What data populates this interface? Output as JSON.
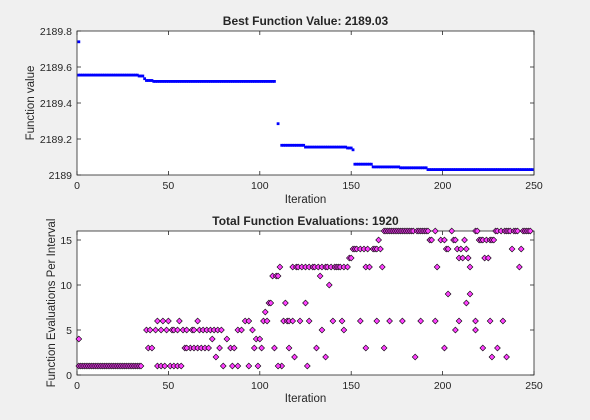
{
  "figure": {
    "background": "#f0f0f0"
  },
  "chart_data": [
    {
      "type": "scatter",
      "title": "Best Function Value: 2189.03",
      "xlabel": "Iteration",
      "ylabel": "Function value",
      "xlim": [
        0,
        250
      ],
      "ylim": [
        2189,
        2189.8
      ],
      "xticks": [
        "0",
        "50",
        "100",
        "150",
        "200",
        "250"
      ],
      "yticks": [
        "2189",
        "2189.2",
        "2189.4",
        "2189.6",
        "2189.8"
      ],
      "grid": false,
      "marker_color": "#0000ff",
      "segments": [
        {
          "x_start": 1,
          "x_end": 1,
          "y": 2189.74
        },
        {
          "x_start": 1,
          "x_end": 33,
          "y": 2189.555
        },
        {
          "x_start": 34,
          "x_end": 36,
          "y": 2189.55
        },
        {
          "x_start": 37,
          "x_end": 37,
          "y": 2189.535
        },
        {
          "x_start": 38,
          "x_end": 41,
          "y": 2189.525
        },
        {
          "x_start": 42,
          "x_end": 108,
          "y": 2189.52
        },
        {
          "x_start": 110,
          "x_end": 110,
          "y": 2189.285
        },
        {
          "x_start": 112,
          "x_end": 124,
          "y": 2189.165
        },
        {
          "x_start": 125,
          "x_end": 147,
          "y": 2189.155
        },
        {
          "x_start": 148,
          "x_end": 150,
          "y": 2189.15
        },
        {
          "x_start": 151,
          "x_end": 151,
          "y": 2189.14
        },
        {
          "x_start": 152,
          "x_end": 161,
          "y": 2189.06
        },
        {
          "x_start": 162,
          "x_end": 176,
          "y": 2189.045
        },
        {
          "x_start": 177,
          "x_end": 191,
          "y": 2189.04
        },
        {
          "x_start": 192,
          "x_end": 249,
          "y": 2189.03
        }
      ]
    },
    {
      "type": "scatter",
      "title": "Total Function Evaluations: 1920",
      "xlabel": "Iteration",
      "ylabel": "Function Evaluations Per Interval",
      "xlim": [
        0,
        250
      ],
      "ylim": [
        0,
        16
      ],
      "xticks": [
        "0",
        "50",
        "100",
        "150",
        "200",
        "250"
      ],
      "yticks": [
        "0",
        "5",
        "10",
        "15"
      ],
      "grid": false,
      "marker": "diamond",
      "marker_fill": "#ff40ff",
      "marker_edge": "#000000",
      "points": [
        [
          1,
          4
        ],
        [
          1,
          1
        ],
        [
          2,
          1
        ],
        [
          3,
          1
        ],
        [
          4,
          1
        ],
        [
          5,
          1
        ],
        [
          6,
          1
        ],
        [
          7,
          1
        ],
        [
          8,
          1
        ],
        [
          9,
          1
        ],
        [
          10,
          1
        ],
        [
          11,
          1
        ],
        [
          12,
          1
        ],
        [
          13,
          1
        ],
        [
          14,
          1
        ],
        [
          15,
          1
        ],
        [
          16,
          1
        ],
        [
          17,
          1
        ],
        [
          18,
          1
        ],
        [
          19,
          1
        ],
        [
          20,
          1
        ],
        [
          21,
          1
        ],
        [
          22,
          1
        ],
        [
          23,
          1
        ],
        [
          24,
          1
        ],
        [
          25,
          1
        ],
        [
          26,
          1
        ],
        [
          27,
          1
        ],
        [
          28,
          1
        ],
        [
          29,
          1
        ],
        [
          30,
          1
        ],
        [
          31,
          1
        ],
        [
          32,
          1
        ],
        [
          33,
          1
        ],
        [
          34,
          1
        ],
        [
          35,
          1
        ],
        [
          38,
          5
        ],
        [
          40,
          5
        ],
        [
          39,
          3
        ],
        [
          41,
          3
        ],
        [
          43,
          5
        ],
        [
          44,
          6
        ],
        [
          46,
          5
        ],
        [
          47,
          6
        ],
        [
          49,
          5
        ],
        [
          50,
          6
        ],
        [
          52,
          5
        ],
        [
          53,
          5
        ],
        [
          55,
          5
        ],
        [
          56,
          6
        ],
        [
          58,
          5
        ],
        [
          59,
          3
        ],
        [
          60,
          5
        ],
        [
          62,
          3
        ],
        [
          63,
          5
        ],
        [
          64,
          5
        ],
        [
          66,
          6
        ],
        [
          67,
          5
        ],
        [
          69,
          5
        ],
        [
          71,
          5
        ],
        [
          73,
          5
        ],
        [
          75,
          5
        ],
        [
          77,
          5
        ],
        [
          79,
          5
        ],
        [
          82,
          4
        ],
        [
          84,
          3
        ],
        [
          86,
          3
        ],
        [
          88,
          5
        ],
        [
          90,
          5
        ],
        [
          92,
          6
        ],
        [
          94,
          6
        ],
        [
          96,
          5
        ],
        [
          98,
          4
        ],
        [
          100,
          4
        ],
        [
          101,
          3
        ],
        [
          102,
          6
        ],
        [
          103,
          7
        ],
        [
          104,
          6
        ],
        [
          44,
          1
        ],
        [
          46,
          1
        ],
        [
          48,
          1
        ],
        [
          51,
          1
        ],
        [
          53,
          1
        ],
        [
          55,
          1
        ],
        [
          57,
          1
        ],
        [
          60,
          3
        ],
        [
          64,
          3
        ],
        [
          66,
          3
        ],
        [
          68,
          3
        ],
        [
          70,
          3
        ],
        [
          72,
          3
        ],
        [
          74,
          4
        ],
        [
          76,
          2
        ],
        [
          78,
          3
        ],
        [
          80,
          1
        ],
        [
          85,
          1
        ],
        [
          88,
          1
        ],
        [
          94,
          1
        ],
        [
          97,
          3
        ],
        [
          99,
          1
        ],
        [
          108,
          3
        ],
        [
          112,
          1
        ],
        [
          116,
          3
        ],
        [
          119,
          2
        ],
        [
          126,
          1
        ],
        [
          131,
          3
        ],
        [
          136,
          2
        ],
        [
          146,
          5
        ],
        [
          158,
          3
        ],
        [
          168,
          3
        ],
        [
          185,
          2
        ],
        [
          201,
          3
        ],
        [
          207,
          5
        ],
        [
          218,
          5
        ],
        [
          222,
          3
        ],
        [
          227,
          2
        ],
        [
          230,
          3
        ],
        [
          235,
          2
        ],
        [
          105,
          8
        ],
        [
          106,
          8
        ],
        [
          107,
          11
        ],
        [
          109,
          11
        ],
        [
          110,
          11
        ],
        [
          111,
          12
        ],
        [
          113,
          6
        ],
        [
          114,
          8
        ],
        [
          115,
          6
        ],
        [
          118,
          12
        ],
        [
          120,
          12
        ],
        [
          121,
          12
        ],
        [
          123,
          12
        ],
        [
          125,
          12
        ],
        [
          127,
          12
        ],
        [
          129,
          12
        ],
        [
          130,
          12
        ],
        [
          132,
          12
        ],
        [
          133,
          11
        ],
        [
          134,
          12
        ],
        [
          136,
          12
        ],
        [
          137,
          12
        ],
        [
          139,
          12
        ],
        [
          141,
          12
        ],
        [
          142,
          12
        ],
        [
          143,
          12
        ],
        [
          144,
          12
        ],
        [
          146,
          12
        ],
        [
          148,
          12
        ],
        [
          149,
          13
        ],
        [
          150,
          13
        ],
        [
          151,
          14
        ],
        [
          152,
          14
        ],
        [
          153,
          14
        ],
        [
          155,
          14
        ],
        [
          157,
          14
        ],
        [
          158,
          12
        ],
        [
          159,
          14
        ],
        [
          160,
          12
        ],
        [
          162,
          14
        ],
        [
          163,
          14
        ],
        [
          164,
          14
        ],
        [
          165,
          15
        ],
        [
          166,
          14
        ],
        [
          167,
          12
        ],
        [
          168,
          16
        ],
        [
          169,
          16
        ],
        [
          170,
          16
        ],
        [
          171,
          16
        ],
        [
          172,
          16
        ],
        [
          173,
          16
        ],
        [
          174,
          16
        ],
        [
          175,
          16
        ],
        [
          176,
          16
        ],
        [
          177,
          16
        ],
        [
          178,
          16
        ],
        [
          179,
          16
        ],
        [
          180,
          16
        ],
        [
          181,
          16
        ],
        [
          182,
          16
        ],
        [
          183,
          16
        ],
        [
          184,
          16
        ],
        [
          186,
          16
        ],
        [
          187,
          16
        ],
        [
          188,
          16
        ],
        [
          189,
          16
        ],
        [
          190,
          16
        ],
        [
          191,
          16
        ],
        [
          192,
          16
        ],
        [
          193,
          15
        ],
        [
          194,
          15
        ],
        [
          196,
          16
        ],
        [
          197,
          12
        ],
        [
          199,
          15
        ],
        [
          201,
          15
        ],
        [
          202,
          14
        ],
        [
          203,
          14
        ],
        [
          205,
          16
        ],
        [
          206,
          15
        ],
        [
          207,
          15
        ],
        [
          208,
          14
        ],
        [
          209,
          13
        ],
        [
          210,
          14
        ],
        [
          211,
          13
        ],
        [
          212,
          15
        ],
        [
          213,
          14
        ],
        [
          214,
          13
        ],
        [
          215,
          12
        ],
        [
          218,
          16
        ],
        [
          219,
          16
        ],
        [
          220,
          15
        ],
        [
          221,
          15
        ],
        [
          222,
          15
        ],
        [
          223,
          13
        ],
        [
          224,
          15
        ],
        [
          225,
          13
        ],
        [
          226,
          15
        ],
        [
          227,
          15
        ],
        [
          228,
          15
        ],
        [
          229,
          16
        ],
        [
          230,
          16
        ],
        [
          232,
          16
        ],
        [
          234,
          16
        ],
        [
          235,
          16
        ],
        [
          236,
          16
        ],
        [
          237,
          16
        ],
        [
          238,
          14
        ],
        [
          239,
          16
        ],
        [
          240,
          16
        ],
        [
          241,
          16
        ],
        [
          242,
          12
        ],
        [
          243,
          14
        ],
        [
          244,
          16
        ],
        [
          245,
          16
        ],
        [
          246,
          16
        ],
        [
          247,
          16
        ],
        [
          248,
          16
        ],
        [
          110,
          1
        ],
        [
          116,
          6
        ],
        [
          118,
          6
        ],
        [
          122,
          6
        ],
        [
          125,
          8
        ],
        [
          127,
          6
        ],
        [
          134,
          5
        ],
        [
          138,
          10
        ],
        [
          140,
          6
        ],
        [
          145,
          6
        ],
        [
          155,
          6
        ],
        [
          164,
          6
        ],
        [
          171,
          6
        ],
        [
          178,
          6
        ],
        [
          188,
          6
        ],
        [
          196,
          6
        ],
        [
          203,
          9
        ],
        [
          209,
          6
        ],
        [
          213,
          8
        ],
        [
          215,
          9
        ],
        [
          218,
          6
        ],
        [
          226,
          6
        ],
        [
          233,
          6
        ]
      ]
    }
  ]
}
